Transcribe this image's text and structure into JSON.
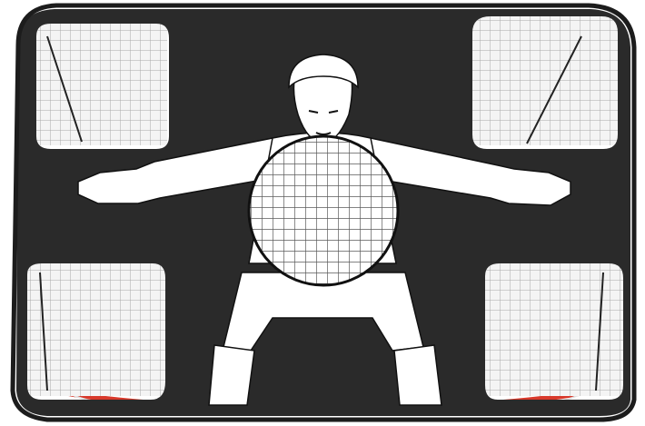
{
  "image": {
    "subject": "pop-up-soccer-goal-with-goalkeeper-target-screen",
    "colors": {
      "frame": "#1c1c1c",
      "banner": "#2a2a2a",
      "net": "#ffffff",
      "goalkeeper": "#ffffff",
      "outline": "#111111",
      "base_ring": "#d8392b",
      "background": "#ffffff"
    }
  }
}
